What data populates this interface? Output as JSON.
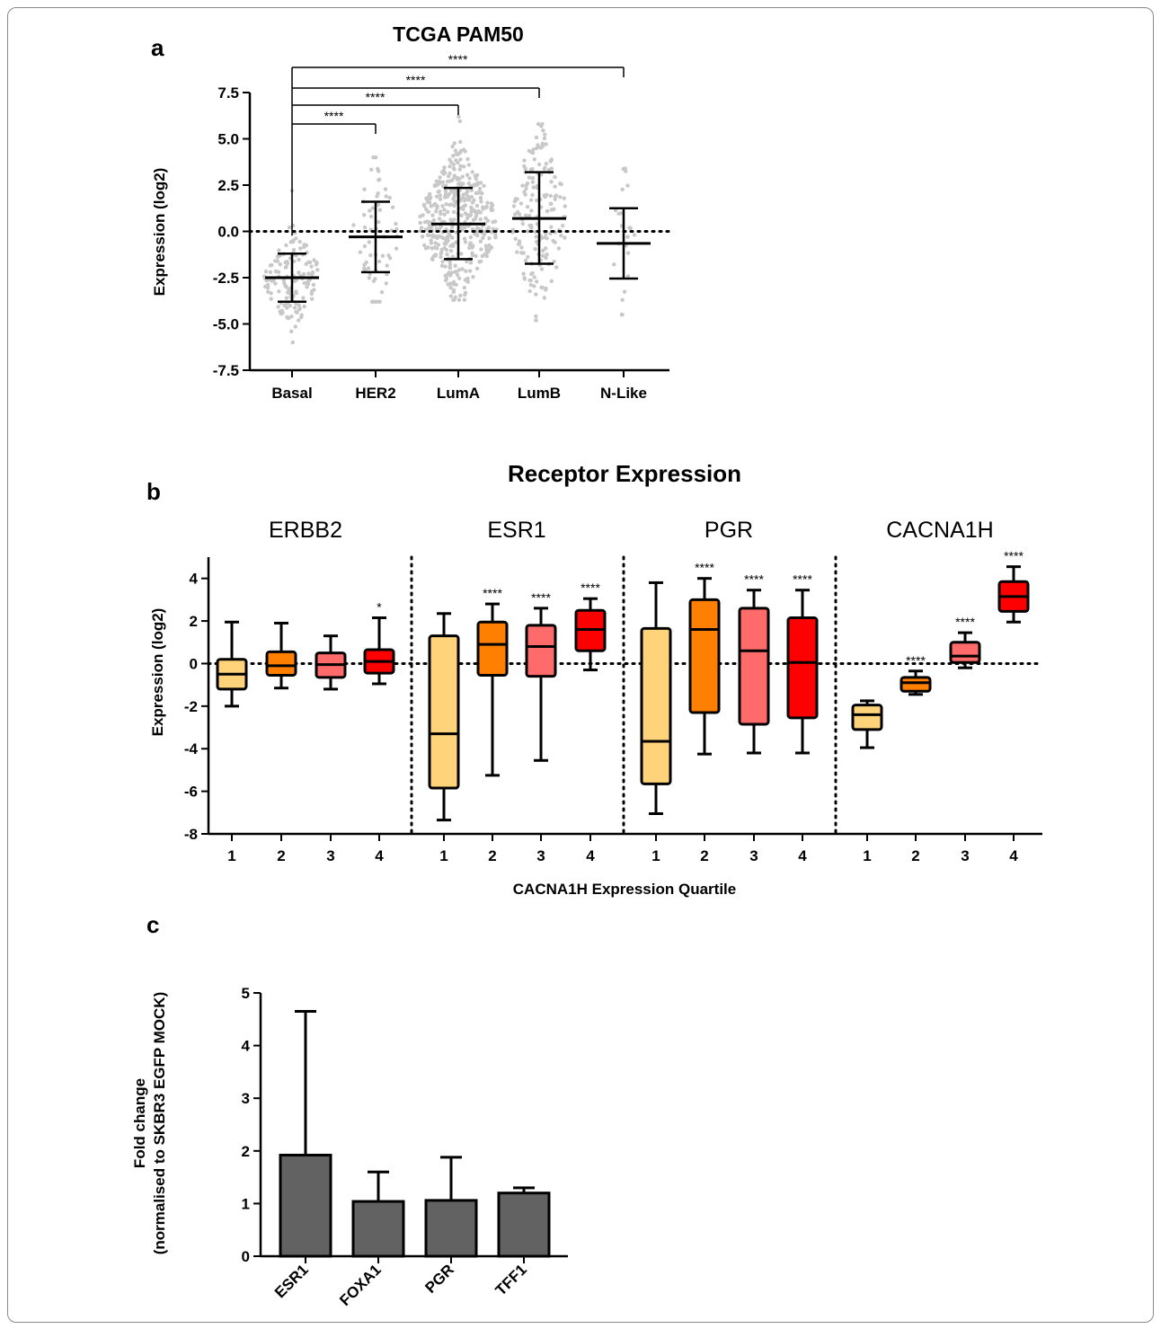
{
  "chart_data": [
    {
      "panel": "a",
      "type": "scatter",
      "title": "TCGA PAM50",
      "xlabel": "",
      "ylabel": "Expression (log2)",
      "ylim": [
        -7.5,
        7.5
      ],
      "yticks": [
        "7.5",
        "5.0",
        "2.5",
        "0.0",
        "-2.5",
        "-5.0",
        "-7.5"
      ],
      "reference_line": 0,
      "categories": [
        "Basal",
        "HER2",
        "LumA",
        "LumB",
        "N-Like"
      ],
      "mean": [
        -2.5,
        -0.3,
        0.4,
        0.7,
        -0.65
      ],
      "sd_upper": [
        -1.2,
        1.6,
        2.35,
        3.2,
        1.25
      ],
      "sd_lower": [
        -3.8,
        -2.2,
        -1.5,
        -1.75,
        -2.55
      ],
      "point_range_min": [
        -6.0,
        -3.8,
        -3.7,
        -4.8,
        -4.5
      ],
      "point_range_max": [
        2.2,
        4.0,
        6.2,
        5.8,
        3.4
      ],
      "point_counts": [
        140,
        60,
        420,
        170,
        22
      ],
      "significance": [
        {
          "from": "Basal",
          "to": "HER2",
          "label": "****"
        },
        {
          "from": "Basal",
          "to": "LumA",
          "label": "****"
        },
        {
          "from": "Basal",
          "to": "LumB",
          "label": "****"
        },
        {
          "from": "Basal",
          "to": "N-Like",
          "label": "****"
        }
      ],
      "point_color": "#c8c8c8"
    },
    {
      "panel": "b",
      "type": "box",
      "title": "Receptor Expression",
      "xlabel": "CACNA1H Expression Quartile",
      "ylabel": "Expression (log2)",
      "ylim": [
        -8,
        5
      ],
      "yticks": [
        "4",
        "2",
        "0",
        "-2",
        "-4",
        "-6",
        "-8"
      ],
      "reference_line": 0,
      "quartile_labels": [
        "1",
        "2",
        "3",
        "4"
      ],
      "quartile_colors": [
        "#ffd37a",
        "#ff8000",
        "#ff6b6b",
        "#ff0000"
      ],
      "groups": [
        {
          "name": "ERBB2",
          "boxes": [
            {
              "min": -2.0,
              "q1": -1.2,
              "median": -0.5,
              "q3": 0.2,
              "max": 1.95,
              "sig": ""
            },
            {
              "min": -1.15,
              "q1": -0.55,
              "median": -0.1,
              "q3": 0.55,
              "max": 1.9,
              "sig": ""
            },
            {
              "min": -1.2,
              "q1": -0.65,
              "median": -0.05,
              "q3": 0.5,
              "max": 1.3,
              "sig": ""
            },
            {
              "min": -0.95,
              "q1": -0.45,
              "median": 0.1,
              "q3": 0.65,
              "max": 2.15,
              "sig": "*"
            }
          ]
        },
        {
          "name": "ESR1",
          "boxes": [
            {
              "min": -7.35,
              "q1": -5.85,
              "median": -3.3,
              "q3": 1.3,
              "max": 2.35,
              "sig": ""
            },
            {
              "min": -5.25,
              "q1": -0.55,
              "median": 0.9,
              "q3": 1.95,
              "max": 2.8,
              "sig": "****"
            },
            {
              "min": -4.55,
              "q1": -0.6,
              "median": 0.8,
              "q3": 1.8,
              "max": 2.6,
              "sig": "****"
            },
            {
              "min": -0.3,
              "q1": 0.6,
              "median": 1.6,
              "q3": 2.5,
              "max": 3.05,
              "sig": "****"
            }
          ]
        },
        {
          "name": "PGR",
          "boxes": [
            {
              "min": -7.05,
              "q1": -5.65,
              "median": -3.65,
              "q3": 1.65,
              "max": 3.8,
              "sig": ""
            },
            {
              "min": -4.25,
              "q1": -2.3,
              "median": 1.6,
              "q3": 3.0,
              "max": 4.0,
              "sig": "****"
            },
            {
              "min": -4.2,
              "q1": -2.85,
              "median": 0.6,
              "q3": 2.6,
              "max": 3.45,
              "sig": "****"
            },
            {
              "min": -4.2,
              "q1": -2.55,
              "median": 0.05,
              "q3": 2.15,
              "max": 3.45,
              "sig": "****"
            }
          ]
        },
        {
          "name": "CACNA1H",
          "boxes": [
            {
              "min": -3.95,
              "q1": -3.1,
              "median": -2.4,
              "q3": -1.95,
              "max": -1.75,
              "sig": ""
            },
            {
              "min": -1.45,
              "q1": -1.3,
              "median": -0.9,
              "q3": -0.65,
              "max": -0.35,
              "sig": "****"
            },
            {
              "min": -0.2,
              "q1": 0.05,
              "median": 0.35,
              "q3": 1.0,
              "max": 1.45,
              "sig": "****"
            },
            {
              "min": 1.95,
              "q1": 2.45,
              "median": 3.15,
              "q3": 3.85,
              "max": 4.55,
              "sig": "****"
            }
          ]
        }
      ]
    },
    {
      "panel": "c",
      "type": "bar",
      "title": "",
      "xlabel": "",
      "ylabel": "Fold change\n(normalised to SKBR3 EGFP MOCK)",
      "ylabel_lines": [
        "Fold change",
        "(normalised to SKBR3 EGFP MOCK)"
      ],
      "ylim": [
        0,
        5
      ],
      "yticks": [
        "5",
        "4",
        "3",
        "2",
        "1",
        "0"
      ],
      "categories": [
        "ESR1",
        "FOXA1",
        "PGR",
        "TFF1"
      ],
      "values": [
        1.92,
        1.04,
        1.06,
        1.2
      ],
      "error_upper": [
        4.65,
        1.6,
        1.88,
        1.3
      ],
      "bar_color": "#626262"
    }
  ],
  "panel_labels": [
    "a",
    "b",
    "c"
  ]
}
